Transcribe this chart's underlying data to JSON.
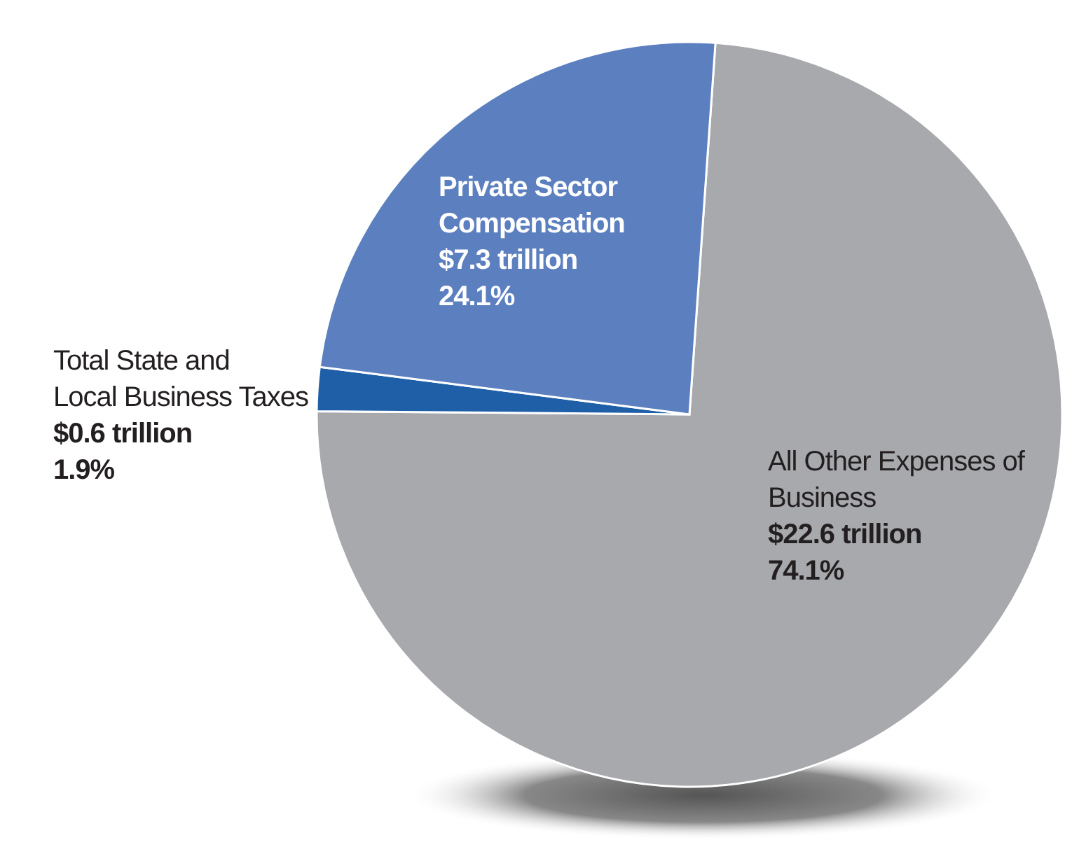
{
  "chart_data": {
    "type": "pie",
    "categories": [
      "All Other Expenses of Business",
      "Total State and Local Business Taxes",
      "Private Sector Compensation"
    ],
    "values": [
      74.1,
      1.9,
      24.1
    ],
    "colors": [
      "#a7a9ac",
      "#1f5fa8",
      "#5b7fbf"
    ],
    "value_labels": [
      "$22.6 trillion\n74.1%",
      "$0.6 trillion\n1.9%",
      "$7.3 trillion\n24.1%"
    ]
  }
}
